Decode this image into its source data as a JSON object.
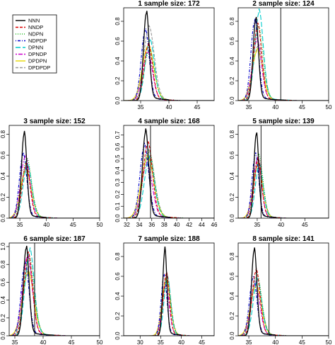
{
  "chart_data": {
    "type": "line",
    "legend": {
      "placement": "top-left",
      "entries": [
        {
          "name": "NNN",
          "color": "#000000",
          "dash": "solid"
        },
        {
          "name": "NNDP",
          "color": "#dd0000",
          "dash": "dashed"
        },
        {
          "name": "NDPN",
          "color": "#22bb22",
          "dash": "dotted"
        },
        {
          "name": "NDPDP",
          "color": "#0000cc",
          "dash": "dotdash"
        },
        {
          "name": "DPNN",
          "color": "#00cccc",
          "dash": "longdash"
        },
        {
          "name": "DPNDP",
          "color": "#cc00cc",
          "dash": "twodash"
        },
        {
          "name": "DPDPN",
          "color": "#e6d800",
          "dash": "solid"
        },
        {
          "name": "DPDPDP",
          "color": "#999999",
          "dash": "dashed"
        }
      ]
    },
    "panels": [
      {
        "title": "1 sample size:  172",
        "xlim": [
          32,
          48
        ],
        "ylim": [
          0,
          0.9
        ],
        "xticks": [
          35,
          40,
          45
        ],
        "yticks": [
          0.0,
          0.2,
          0.4,
          0.6,
          0.8
        ],
        "vline": null,
        "base": 36,
        "peaks": [
          0.88,
          0.55,
          0.5,
          0.7,
          0.6,
          0.48,
          0.55,
          0.72
        ],
        "tail": 40
      },
      {
        "title": "2 sample size:  124",
        "xlim": [
          33,
          50
        ],
        "ylim": [
          0,
          0.9
        ],
        "xticks": [
          35,
          40,
          45,
          50
        ],
        "yticks": [
          0.0,
          0.2,
          0.4,
          0.6,
          0.8
        ],
        "vline": 41,
        "base": 36.3,
        "peaks": [
          0.82,
          0.75,
          0.72,
          0.8,
          0.88,
          0.6,
          0.5,
          0.55
        ],
        "tail": 42
      },
      {
        "title": "3 sample size:  152",
        "xlim": [
          33,
          50
        ],
        "ylim": [
          0,
          0.85
        ],
        "xticks": [
          35,
          40,
          45,
          50
        ],
        "yticks": [
          0.0,
          0.2,
          0.4,
          0.6,
          0.8
        ],
        "vline": null,
        "base": 35.8,
        "peaks": [
          0.8,
          0.5,
          0.55,
          0.6,
          0.5,
          0.58,
          0.45,
          0.5
        ],
        "tail": 40
      },
      {
        "title": "4 sample size:  168",
        "xlim": [
          31.5,
          46
        ],
        "ylim": [
          0,
          0.75
        ],
        "xticks": [
          32,
          34,
          36,
          38,
          40,
          42,
          44,
          46
        ],
        "yticks": [
          0.0,
          0.1,
          0.2,
          0.3,
          0.4,
          0.5,
          0.6,
          0.7
        ],
        "vline": 35.8,
        "base": 35,
        "peaks": [
          0.72,
          0.62,
          0.55,
          0.6,
          0.5,
          0.45,
          0.5,
          0.55
        ],
        "tail": 39
      },
      {
        "title": "5 sample size:  139",
        "xlim": [
          31,
          50
        ],
        "ylim": [
          0,
          0.85
        ],
        "xticks": [
          35,
          40,
          45
        ],
        "yticks": [
          0.0,
          0.2,
          0.4,
          0.6,
          0.8
        ],
        "vline": 35.8,
        "base": 34.8,
        "peaks": [
          0.8,
          0.55,
          0.58,
          0.6,
          0.5,
          0.55,
          0.5,
          0.52
        ],
        "tail": 39
      },
      {
        "title": "6 sample size:  187",
        "xlim": [
          34,
          50
        ],
        "ylim": [
          0,
          1.0
        ],
        "xticks": [
          35,
          40,
          45,
          50
        ],
        "yticks": [
          0.0,
          0.2,
          0.4,
          0.6,
          0.8,
          1.0
        ],
        "vline": 38.5,
        "base": 37,
        "peaks": [
          0.98,
          0.9,
          0.85,
          0.8,
          0.95,
          0.88,
          0.7,
          0.75
        ],
        "tail": 42
      },
      {
        "title": "7 sample size:  188",
        "xlim": [
          26,
          48
        ],
        "ylim": [
          0,
          0.9
        ],
        "xticks": [
          30,
          35,
          40,
          45
        ],
        "yticks": [
          0.0,
          0.2,
          0.4,
          0.6,
          0.8
        ],
        "vline": null,
        "base": 36,
        "peaks": [
          0.86,
          0.62,
          0.55,
          0.6,
          0.58,
          0.5,
          0.55,
          0.6
        ],
        "tail": 40
      },
      {
        "title": "8 sample size:  141",
        "xlim": [
          33,
          50
        ],
        "ylim": [
          0,
          0.9
        ],
        "xticks": [
          35,
          40,
          45,
          50
        ],
        "yticks": [
          0.0,
          0.2,
          0.4,
          0.6,
          0.8
        ],
        "vline": 38.8,
        "base": 36,
        "peaks": [
          0.86,
          0.65,
          0.6,
          0.58,
          0.55,
          0.52,
          0.5,
          0.55
        ],
        "tail": 40
      }
    ]
  }
}
